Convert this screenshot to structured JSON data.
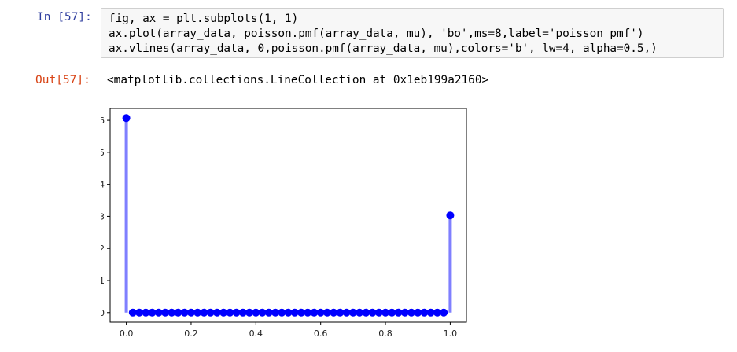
{
  "cell": {
    "in_prompt": "In [57]:",
    "out_prompt": "Out[57]:",
    "code_lines": [
      "fig, ax = plt.subplots(1, 1)",
      "ax.plot(array_data, poisson.pmf(array_data, mu), 'bo',ms=8,label='poisson pmf')",
      "ax.vlines(array_data, 0,poisson.pmf(array_data, mu),colors='b', lw=4, alpha=0.5,)"
    ],
    "output_text": "<matplotlib.collections.LineCollection at 0x1eb199a2160>"
  },
  "chart_data": {
    "type": "scatter",
    "style": "stem",
    "marker_color": "#0000ff",
    "stem_color": "#7f7fff",
    "x": [
      0.0,
      0.02,
      0.04,
      0.06,
      0.08,
      0.1,
      0.12,
      0.14,
      0.16,
      0.18,
      0.2,
      0.22,
      0.24,
      0.26,
      0.28,
      0.3,
      0.32,
      0.34,
      0.36,
      0.38,
      0.4,
      0.42,
      0.44,
      0.46,
      0.48,
      0.5,
      0.52,
      0.54,
      0.56,
      0.58,
      0.6,
      0.62,
      0.64,
      0.66,
      0.68,
      0.7,
      0.72,
      0.74,
      0.76,
      0.78,
      0.8,
      0.82,
      0.84,
      0.86,
      0.88,
      0.9,
      0.92,
      0.94,
      0.96,
      0.98,
      1.0
    ],
    "y": [
      0.607,
      0,
      0,
      0,
      0,
      0,
      0,
      0,
      0,
      0,
      0,
      0,
      0,
      0,
      0,
      0,
      0,
      0,
      0,
      0,
      0,
      0,
      0,
      0,
      0,
      0,
      0,
      0,
      0,
      0,
      0,
      0,
      0,
      0,
      0,
      0,
      0,
      0,
      0,
      0,
      0,
      0,
      0,
      0,
      0,
      0,
      0,
      0,
      0,
      0,
      0.303
    ],
    "xlim": [
      -0.05,
      1.05
    ],
    "ylim": [
      -0.03,
      0.637
    ],
    "x_ticks": [
      0.0,
      0.2,
      0.4,
      0.6,
      0.8,
      1.0
    ],
    "x_tick_labels": [
      "0.0",
      "0.2",
      "0.4",
      "0.6",
      "0.8",
      "1.0"
    ],
    "y_ticks": [
      0.0,
      0.1,
      0.2,
      0.3,
      0.4,
      0.5,
      0.6
    ],
    "y_tick_labels": [
      "0.0",
      "0.1",
      "0.2",
      "0.3",
      "0.4",
      "0.5",
      "0.6"
    ],
    "title": "",
    "xlabel": "",
    "ylabel": "",
    "grid": false
  }
}
